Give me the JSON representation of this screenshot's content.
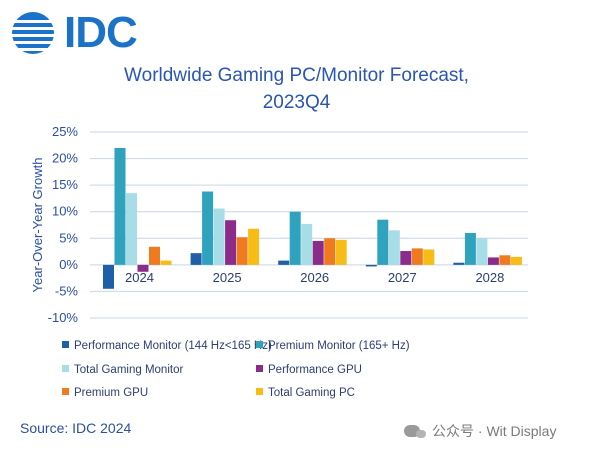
{
  "logo": {
    "text": "IDC"
  },
  "header": {
    "title_line1": "Worldwide Gaming PC/Monitor Forecast,",
    "title_line2": "2023Q4"
  },
  "source": "Source: IDC 2024",
  "watermark": "公众号 · Wit Display",
  "colors": {
    "title": "#2a56b0",
    "axis_text": "#2c4fa0",
    "grid": "#c9d4e8"
  },
  "chart_data": {
    "type": "bar",
    "title": "Worldwide Gaming PC/Monitor Forecast, 2023Q4",
    "xlabel": "",
    "ylabel": "Year-Over-Year Growth",
    "categories": [
      "2024",
      "2025",
      "2026",
      "2027",
      "2028"
    ],
    "ylim": [
      -10,
      25
    ],
    "yticks": [
      -10,
      -5,
      0,
      5,
      10,
      15,
      20,
      25
    ],
    "ytick_labels": [
      "-10%",
      "-5%",
      "0%",
      "5%",
      "10%",
      "15%",
      "20%",
      "25%"
    ],
    "grid": true,
    "legend_position": "bottom",
    "series": [
      {
        "name": "Performance Monitor (144 Hz<165 Hz)",
        "color": "#1f5fa8",
        "values": [
          -4.5,
          2.2,
          0.8,
          -0.3,
          0.4
        ]
      },
      {
        "name": "Premium Monitor (165+ Hz)",
        "color": "#2fa3bd",
        "values": [
          22.0,
          13.8,
          10.0,
          8.5,
          6.0
        ]
      },
      {
        "name": "Total Gaming Monitor",
        "color": "#a6dde6",
        "values": [
          13.5,
          10.6,
          7.7,
          6.5,
          5.0
        ]
      },
      {
        "name": "Performance GPU",
        "color": "#8b2b8a",
        "values": [
          -1.3,
          8.4,
          4.5,
          2.6,
          1.4
        ]
      },
      {
        "name": "Premium GPU",
        "color": "#f07a1e",
        "values": [
          3.4,
          5.2,
          5.0,
          3.1,
          1.8
        ]
      },
      {
        "name": "Total Gaming PC",
        "color": "#f7bc16",
        "values": [
          0.8,
          6.8,
          4.7,
          2.9,
          1.5
        ]
      }
    ]
  }
}
